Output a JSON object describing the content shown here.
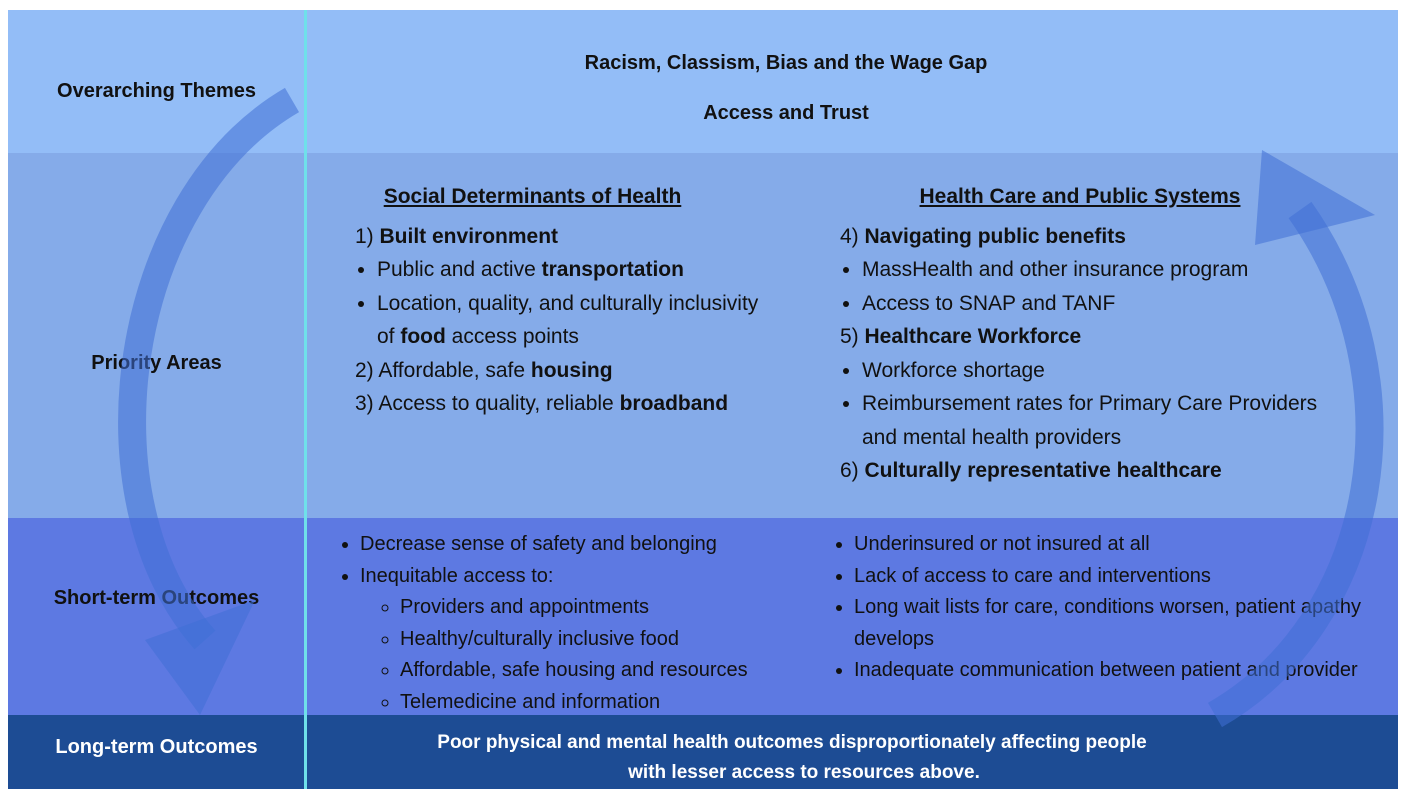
{
  "themes": {
    "label": "Overarching Themes",
    "lines": [
      "Racism, Classism, Bias and the Wage Gap",
      "Access and Trust"
    ]
  },
  "priority": {
    "label": "Priority Areas",
    "left": {
      "heading": "Social Determinants of Health",
      "items": [
        {
          "runs": [
            {
              "text": "1)  "
            },
            {
              "text": "Built environment",
              "bold": true
            }
          ],
          "sub": [
            {
              "runs": [
                {
                  "text": "Public and active "
                },
                {
                  "text": "transportation",
                  "bold": true
                }
              ]
            },
            {
              "runs": [
                {
                  "text": "Location, quality, and culturally inclusivity of "
                },
                {
                  "text": "food",
                  "bold": true
                },
                {
                  "text": " access points"
                }
              ]
            }
          ]
        },
        {
          "runs": [
            {
              "text": "2)  Affordable, safe "
            },
            {
              "text": "housing",
              "bold": true
            }
          ]
        },
        {
          "runs": [
            {
              "text": "3)  Access to quality, reliable "
            },
            {
              "text": "broadband",
              "bold": true
            }
          ]
        }
      ]
    },
    "right": {
      "heading": "Health Care and Public Systems",
      "items": [
        {
          "runs": [
            {
              "text": "4)  "
            },
            {
              "text": "Navigating public benefits",
              "bold": true
            }
          ],
          "sub": [
            {
              "runs": [
                {
                  "text": "MassHealth and other insurance program"
                }
              ]
            },
            {
              "runs": [
                {
                  "text": "Access to SNAP and TANF"
                }
              ]
            }
          ]
        },
        {
          "runs": [
            {
              "text": "5)  "
            },
            {
              "text": "Healthcare Workforce",
              "bold": true
            }
          ],
          "sub": [
            {
              "runs": [
                {
                  "text": "Workforce shortage"
                }
              ]
            },
            {
              "runs": [
                {
                  "text": "Reimbursement rates for Primary Care Providers and mental health providers"
                }
              ]
            }
          ]
        },
        {
          "runs": [
            {
              "text": "6)  "
            },
            {
              "text": "Culturally representative healthcare",
              "bold": true
            }
          ]
        }
      ]
    }
  },
  "short_term": {
    "label": "Short-term Outcomes",
    "left": [
      {
        "text": "Decrease sense of safety and belonging"
      },
      {
        "text": "Inequitable access to:",
        "sub": [
          "Providers and appointments",
          "Healthy/culturally inclusive food",
          "Affordable, safe housing and resources",
          "Telemedicine and information"
        ]
      }
    ],
    "right": [
      {
        "text": "Underinsured or not insured at all"
      },
      {
        "text": "Lack of access to care and interventions"
      },
      {
        "text": "Long wait lists for care, conditions worsen, patient apathy develops"
      },
      {
        "text": "Inadequate communication between patient and provider"
      }
    ]
  },
  "long_term": {
    "label": "Long-term Outcomes",
    "lines": [
      "Poor physical and mental health outcomes disproportionately affecting people",
      "with lesser access to resources above."
    ]
  }
}
